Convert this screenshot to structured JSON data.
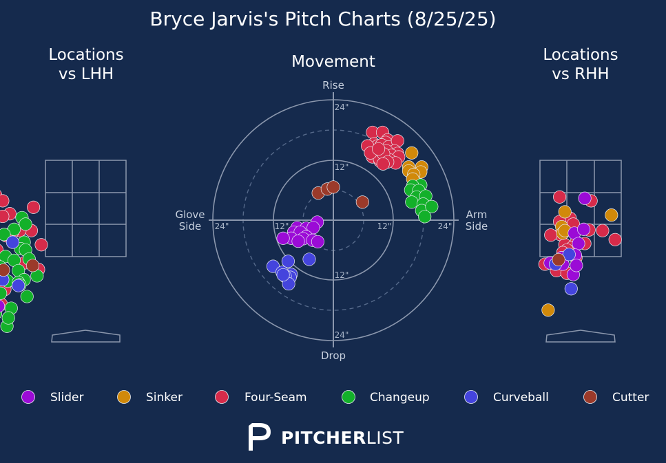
{
  "title": "Bryce Jarvis's Pitch Charts (8/25/25)",
  "panels": {
    "lhh_title": [
      "Locations",
      "vs LHH"
    ],
    "movement_title": "Movement",
    "rhh_title": [
      "Locations",
      "vs RHH"
    ]
  },
  "movement_axes": {
    "top": "Rise",
    "bottom": "Drop",
    "left": [
      "Glove",
      "Side"
    ],
    "right": [
      "Arm",
      "Side"
    ],
    "ring_labels": [
      "24\"",
      "12\"",
      "12\"",
      "24\"",
      "12\"",
      "24\"",
      "12\"",
      "24\""
    ]
  },
  "legend": [
    {
      "name": "Slider",
      "color": "#9b0bd6"
    },
    {
      "name": "Sinker",
      "color": "#d1890a"
    },
    {
      "name": "Four-Seam",
      "color": "#d62b4a"
    },
    {
      "name": "Changeup",
      "color": "#13b02a"
    },
    {
      "name": "Curveball",
      "color": "#4444dd"
    },
    {
      "name": "Cutter",
      "color": "#9b3a2a"
    }
  ],
  "logo": {
    "bold": "PITCHER",
    "light": "LIST"
  },
  "chart_data": [
    {
      "type": "scatter",
      "title": "Movement",
      "xlabel": "Glove Side ← → Arm Side (inches)",
      "ylabel": "Drop ← → Rise (inches)",
      "xlim": [
        -24,
        24
      ],
      "ylim": [
        -24,
        24
      ],
      "series": [
        {
          "name": "Four-Seam",
          "color": "#d62b4a",
          "points": [
            [
              7.8,
              17.5
            ],
            [
              9.8,
              17.5
            ],
            [
              10.8,
              16
            ],
            [
              10.4,
              15.5
            ],
            [
              8.1,
              15.2
            ],
            [
              8.8,
              14.8
            ],
            [
              9.6,
              15
            ],
            [
              11,
              14.6
            ],
            [
              12.8,
              15.8
            ],
            [
              12.2,
              13.8
            ],
            [
              6.8,
              14.8
            ],
            [
              10.6,
              13.8
            ],
            [
              12.8,
              13.3
            ],
            [
              8.4,
              13
            ],
            [
              11.6,
              12.9
            ],
            [
              13,
              12.6
            ],
            [
              7.8,
              12.6
            ],
            [
              9.6,
              12.4
            ],
            [
              9.3,
              11.8
            ],
            [
              11.2,
              12
            ],
            [
              12.4,
              11.4
            ],
            [
              9.2,
              12.2
            ],
            [
              10,
              13.2
            ],
            [
              7.4,
              13.4
            ],
            [
              9,
              14.2
            ],
            [
              10.8,
              11.6
            ],
            [
              9.9,
              11.2
            ]
          ]
        },
        {
          "name": "Sinker",
          "color": "#d1890a",
          "points": [
            [
              15.6,
              13.4
            ],
            [
              15,
              10.6
            ],
            [
              17.6,
              10.6
            ],
            [
              17.4,
              9.6
            ],
            [
              15,
              9.8
            ],
            [
              16,
              9.1
            ],
            [
              15.8,
              8.2
            ]
          ]
        },
        {
          "name": "Changeup",
          "color": "#13b02a",
          "points": [
            [
              17.4,
              7
            ],
            [
              15.8,
              6.8
            ],
            [
              16.2,
              5.2
            ],
            [
              15.4,
              6
            ],
            [
              17,
              5.9
            ],
            [
              16.6,
              4.6
            ],
            [
              18.4,
              4.8
            ],
            [
              15.6,
              3.6
            ],
            [
              18.6,
              2.7
            ],
            [
              17.9,
              3.2
            ],
            [
              17.6,
              1.9
            ],
            [
              19.6,
              2.7
            ],
            [
              18.2,
              0.7
            ]
          ]
        },
        {
          "name": "Slider",
          "color": "#9b0bd6",
          "points": [
            [
              -3.2,
              -0.4
            ],
            [
              -7.2,
              -1.5
            ],
            [
              -5.4,
              -1.6
            ],
            [
              -4,
              -1.5
            ],
            [
              -7.9,
              -2.4
            ],
            [
              -6.6,
              -2.4
            ],
            [
              -5.4,
              -3.3
            ],
            [
              -8.4,
              -3.6
            ],
            [
              -6,
              -3.7
            ],
            [
              -10,
              -3.6
            ],
            [
              -4.1,
              -4
            ],
            [
              -7,
              -4.2
            ],
            [
              -3.1,
              -4.3
            ]
          ]
        },
        {
          "name": "Curveball",
          "color": "#4444dd",
          "points": [
            [
              -4.8,
              -7.8
            ],
            [
              -9,
              -8.2
            ],
            [
              -12,
              -9.2
            ],
            [
              -8.4,
              -10.8
            ],
            [
              -10.2,
              -10.4
            ],
            [
              -8.6,
              -11.4
            ],
            [
              -9.6,
              -11.2
            ],
            [
              -8.9,
              -12.7
            ],
            [
              -10,
              -10.9
            ]
          ]
        },
        {
          "name": "Cutter",
          "color": "#9b3a2a",
          "points": [
            [
              -3,
              5.4
            ],
            [
              -1.2,
              6.2
            ],
            [
              0,
              6.6
            ],
            [
              5.8,
              3.6
            ]
          ]
        }
      ]
    },
    {
      "type": "scatter",
      "title": "Locations vs LHH",
      "series": [
        {
          "name": "Four-Seam",
          "color": "#d62b4a",
          "points": [
            [
              -19.8,
              25.2
            ],
            [
              -18.4,
              22.6
            ],
            [
              -12.6,
              19.1
            ],
            [
              -14.6,
              18.6
            ],
            [
              -11.6,
              18.2
            ],
            [
              -7.3,
              17.2
            ],
            [
              -10.6,
              16.2
            ],
            [
              -11.6,
              15.8
            ],
            [
              -13.4,
              14.9
            ],
            [
              -7.6,
              13.6
            ],
            [
              -9.2,
              13.6
            ],
            [
              -10.2,
              13.4
            ],
            [
              -11.1,
              12.8
            ],
            [
              -13.3,
              12.2
            ],
            [
              -6.2,
              11.4
            ],
            [
              -12.4,
              10.6
            ],
            [
              -14.4,
              9.5
            ],
            [
              -8.6,
              8.6
            ],
            [
              -6.6,
              7.6
            ],
            [
              -13.6,
              5.4
            ],
            [
              -9.6,
              5.4
            ],
            [
              -11.3,
              4.5
            ],
            [
              -14,
              2.8
            ],
            [
              -11.8,
              2.2
            ]
          ]
        },
        {
          "name": "Changeup",
          "color": "#13b02a",
          "points": [
            [
              -8.9,
              15.6
            ],
            [
              -8.4,
              14.6
            ],
            [
              -10,
              13.8
            ],
            [
              -11.4,
              13
            ],
            [
              -8.6,
              11.8
            ],
            [
              -9.1,
              10.8
            ],
            [
              -8.4,
              10.6
            ],
            [
              -11.2,
              9.6
            ],
            [
              -7.9,
              9.2
            ],
            [
              -10,
              9
            ],
            [
              -12,
              8
            ],
            [
              -9.4,
              7.4
            ],
            [
              -6.8,
              6.6
            ],
            [
              -8.6,
              6
            ],
            [
              -10.9,
              5.8
            ],
            [
              -9.4,
              5.6
            ],
            [
              -9.2,
              5.2
            ],
            [
              -11.9,
              3.9
            ],
            [
              -8.2,
              3.4
            ],
            [
              -10.4,
              1.6
            ],
            [
              -12.6,
              0.8
            ],
            [
              -11,
              -1.2
            ],
            [
              -10.8,
              0.1
            ]
          ]
        },
        {
          "name": "Slider",
          "color": "#9b0bd6",
          "points": [
            [
              -15.2,
              3
            ],
            [
              -12.2,
              1.9
            ]
          ]
        },
        {
          "name": "Curveball",
          "color": "#4444dd",
          "points": [
            [
              -10.2,
              11.8
            ],
            [
              -11.6,
              6
            ],
            [
              -9.4,
              5.1
            ],
            [
              -16.4,
              -0.6
            ]
          ]
        },
        {
          "name": "Cutter",
          "color": "#9b3a2a",
          "points": [
            [
              -16.6,
              12.2
            ],
            [
              -11.5,
              7.5
            ],
            [
              -7.4,
              8.2
            ],
            [
              -12.9,
              2.8
            ]
          ]
        }
      ]
    },
    {
      "type": "scatter",
      "title": "Locations vs RHH",
      "series": [
        {
          "name": "Four-Seam",
          "color": "#d62b4a",
          "points": [
            [
              -4,
              18.8
            ],
            [
              2,
              18.2
            ],
            [
              -2,
              15.5
            ],
            [
              -4,
              15
            ],
            [
              -1.4,
              14.6
            ],
            [
              1.6,
              13.7
            ],
            [
              -3.9,
              13
            ],
            [
              -5.7,
              12.9
            ],
            [
              -0.8,
              11.8
            ],
            [
              0.8,
              11.6
            ],
            [
              -3,
              11.4
            ],
            [
              -1.6,
              11
            ],
            [
              -2.6,
              10.6
            ],
            [
              -3.4,
              10.2
            ],
            [
              -0.9,
              9.4
            ],
            [
              6.6,
              12.2
            ],
            [
              4.2,
              13.6
            ],
            [
              -6.8,
              8.4
            ],
            [
              -3.4,
              7.6
            ],
            [
              -4.6,
              7.4
            ],
            [
              -2.6,
              7
            ]
          ]
        },
        {
          "name": "Sinker",
          "color": "#d1890a",
          "points": [
            [
              -3,
              16.5
            ],
            [
              -3.6,
              14.2
            ],
            [
              5.9,
              16
            ],
            [
              -3.4,
              13.2
            ],
            [
              -3,
              13.6
            ],
            [
              -6.2,
              1.3
            ]
          ]
        },
        {
          "name": "Slider",
          "color": "#9b0bd6",
          "points": [
            [
              0.8,
              18.6
            ],
            [
              -1.2,
              13.2
            ],
            [
              0.6,
              13.8
            ],
            [
              -0.4,
              11.6
            ],
            [
              -3.6,
              9.4
            ],
            [
              -3.4,
              8.4
            ],
            [
              -1,
              9.8
            ],
            [
              -5.8,
              8.6
            ],
            [
              -1.4,
              6.8
            ],
            [
              -0.8,
              8.2
            ]
          ]
        },
        {
          "name": "Curveball",
          "color": "#4444dd",
          "points": [
            [
              -1.8,
              4.6
            ],
            [
              -4.8,
              8.4
            ],
            [
              -2.2,
              9.9
            ]
          ]
        },
        {
          "name": "Cutter",
          "color": "#9b3a2a",
          "points": [
            [
              -4.2,
              9.1
            ]
          ]
        }
      ]
    }
  ]
}
